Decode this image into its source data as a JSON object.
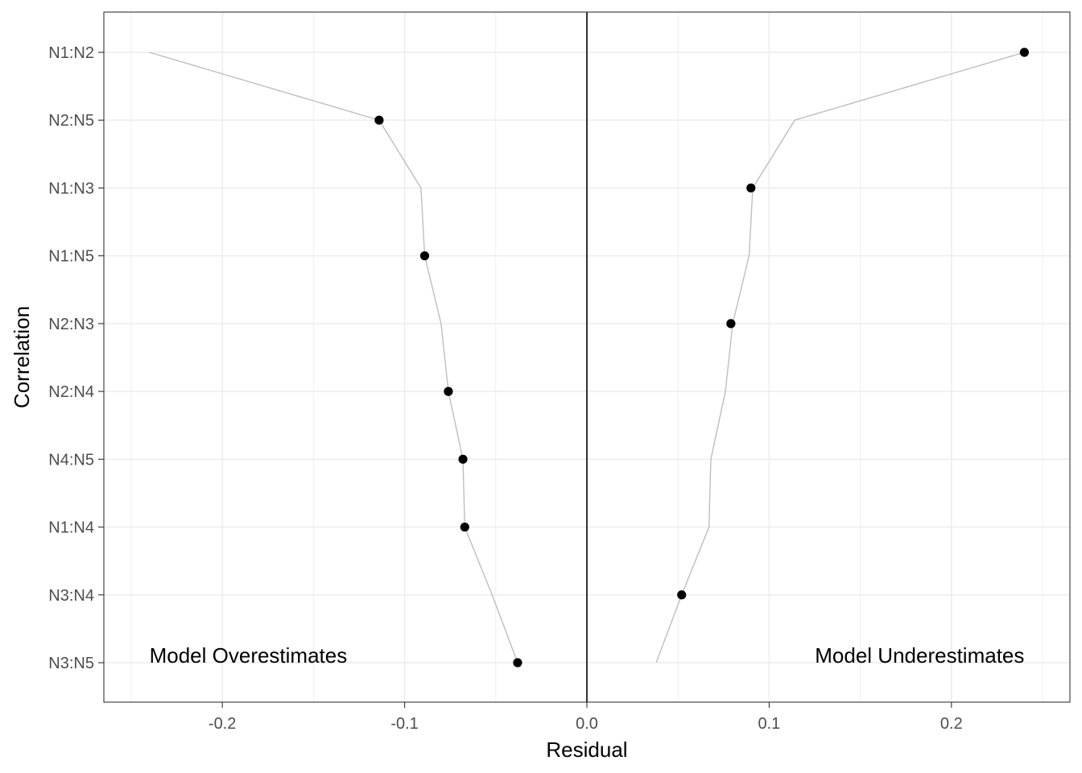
{
  "chart_data": {
    "type": "scatter",
    "xlabel": "Residual",
    "ylabel": "Correlation",
    "xlim": [
      -0.265,
      0.265
    ],
    "x_ticks": [
      -0.2,
      -0.1,
      0.0,
      0.1,
      0.2
    ],
    "x_tick_labels": [
      "-0.2",
      "-0.1",
      "0.0",
      "0.1",
      "0.2"
    ],
    "grid": true,
    "zero_line": 0,
    "categories": [
      "N1:N2",
      "N2:N5",
      "N1:N3",
      "N1:N5",
      "N2:N3",
      "N2:N4",
      "N4:N5",
      "N1:N4",
      "N3:N4",
      "N3:N5"
    ],
    "points": [
      {
        "label": "N1:N2",
        "value": 0.24
      },
      {
        "label": "N2:N5",
        "value": -0.114
      },
      {
        "label": "N1:N3",
        "value": 0.09
      },
      {
        "label": "N1:N5",
        "value": -0.089
      },
      {
        "label": "N2:N3",
        "value": 0.079
      },
      {
        "label": "N2:N4",
        "value": -0.076
      },
      {
        "label": "N4:N5",
        "value": -0.068
      },
      {
        "label": "N1:N4",
        "value": -0.067
      },
      {
        "label": "N3:N4",
        "value": 0.052
      },
      {
        "label": "N3:N5",
        "value": -0.038
      }
    ],
    "lower_envelope": [
      -0.24,
      -0.114,
      -0.091,
      -0.089,
      -0.08,
      -0.076,
      -0.068,
      -0.067,
      -0.052,
      -0.038
    ],
    "upper_envelope": [
      0.24,
      0.114,
      0.091,
      0.089,
      0.08,
      0.076,
      0.068,
      0.067,
      0.052,
      0.038
    ],
    "annotations": {
      "left": "Model Overestimates",
      "right": "Model Underestimates"
    },
    "colors": {
      "points": "#000000",
      "envelope": "#bebebe",
      "grid": "#ebebeb",
      "border": "#333333",
      "zero_line": "#000000"
    }
  }
}
